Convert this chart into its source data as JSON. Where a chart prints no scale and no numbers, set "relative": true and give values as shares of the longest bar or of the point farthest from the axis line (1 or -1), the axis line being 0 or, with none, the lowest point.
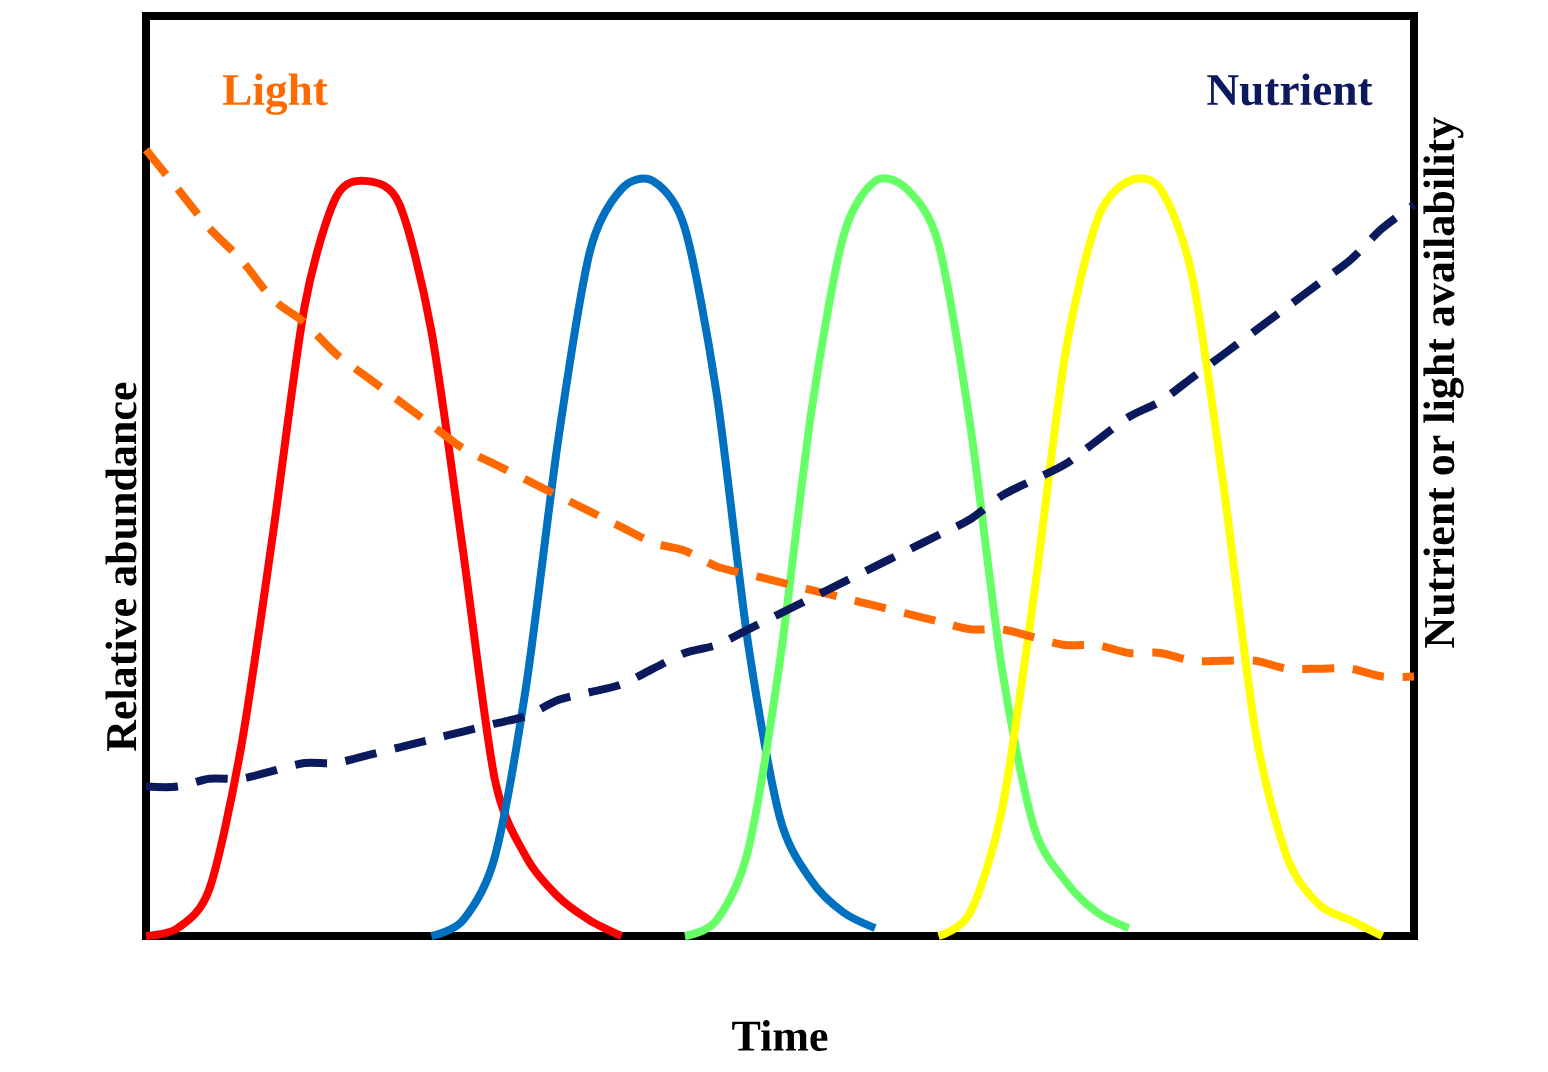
{
  "chart_data": {
    "type": "line",
    "relative": true,
    "xlabel": "Time",
    "ylabel": "Relative abundance",
    "y2label": "Nutrient or light availability",
    "categories": [
      null,
      null,
      null,
      null,
      null,
      null,
      null,
      null,
      null,
      null,
      null,
      null,
      null,
      null,
      null,
      null,
      null,
      null,
      null,
      null,
      null,
      null,
      null,
      null,
      null,
      null,
      null,
      null,
      null,
      null,
      null,
      null,
      null,
      null,
      null,
      null,
      null,
      null,
      null,
      null,
      null
    ],
    "series": [
      {
        "color": "#ff0000",
        "values": [
          0,
          0.01,
          0.06,
          0.24,
          0.51,
          0.8,
          0.94,
          0.96,
          0.93,
          0.77,
          0.49,
          0.2,
          0.1,
          0.05,
          0.02,
          0,
          null,
          null,
          null,
          null,
          null,
          null,
          null,
          null,
          null,
          null,
          null,
          null,
          null,
          null,
          null,
          null,
          null,
          null,
          null,
          null,
          null,
          null,
          null,
          null,
          null
        ]
      },
      {
        "color": "#0070c0",
        "values": [
          null,
          null,
          null,
          null,
          null,
          null,
          null,
          null,
          null,
          0,
          0.02,
          0.1,
          0.32,
          0.63,
          0.87,
          0.95,
          0.96,
          0.9,
          0.69,
          0.37,
          0.15,
          0.07,
          0.03,
          0.01,
          null,
          null,
          null,
          null,
          null,
          null,
          null,
          null,
          null,
          null,
          null,
          null,
          null,
          null,
          null,
          null,
          null
        ]
      },
      {
        "color": "#66ff66",
        "values": [
          null,
          null,
          null,
          null,
          null,
          null,
          null,
          null,
          null,
          null,
          null,
          null,
          null,
          null,
          null,
          null,
          null,
          0,
          0.02,
          0.11,
          0.35,
          0.67,
          0.89,
          0.96,
          0.95,
          0.88,
          0.65,
          0.34,
          0.14,
          0.07,
          0.03,
          0.01,
          null,
          null,
          null,
          null,
          null,
          null,
          null,
          null,
          null
        ]
      },
      {
        "color": "#ffff00",
        "values": [
          null,
          null,
          null,
          null,
          null,
          null,
          null,
          null,
          null,
          null,
          null,
          null,
          null,
          null,
          null,
          null,
          null,
          null,
          null,
          null,
          null,
          null,
          null,
          null,
          null,
          0,
          0.03,
          0.16,
          0.43,
          0.74,
          0.91,
          0.96,
          0.95,
          0.84,
          0.57,
          0.26,
          0.1,
          0.04,
          0.02,
          0,
          null
        ]
      },
      {
        "name": "Light",
        "color": "#ff6a00",
        "line_style": "dashed",
        "values": [
          1.0,
          0.95,
          0.9,
          0.86,
          0.81,
          0.78,
          0.74,
          0.71,
          0.68,
          0.65,
          0.62,
          0.6,
          0.58,
          0.56,
          0.54,
          0.52,
          0.5,
          0.49,
          0.47,
          0.46,
          0.45,
          0.44,
          0.43,
          0.42,
          0.41,
          0.4,
          0.39,
          0.39,
          0.38,
          0.37,
          0.37,
          0.36,
          0.36,
          0.35,
          0.35,
          0.35,
          0.34,
          0.34,
          0.34,
          0.33,
          0.33
        ]
      },
      {
        "name": "Nutrient",
        "color": "#0a1a5c",
        "line_style": "dashed",
        "values": [
          0.19,
          0.19,
          0.2,
          0.2,
          0.21,
          0.22,
          0.22,
          0.23,
          0.24,
          0.25,
          0.26,
          0.27,
          0.28,
          0.3,
          0.31,
          0.32,
          0.34,
          0.36,
          0.37,
          0.39,
          0.41,
          0.43,
          0.45,
          0.47,
          0.49,
          0.51,
          0.53,
          0.56,
          0.58,
          0.6,
          0.63,
          0.66,
          0.68,
          0.71,
          0.74,
          0.77,
          0.8,
          0.83,
          0.86,
          0.9,
          0.93
        ]
      }
    ]
  }
}
